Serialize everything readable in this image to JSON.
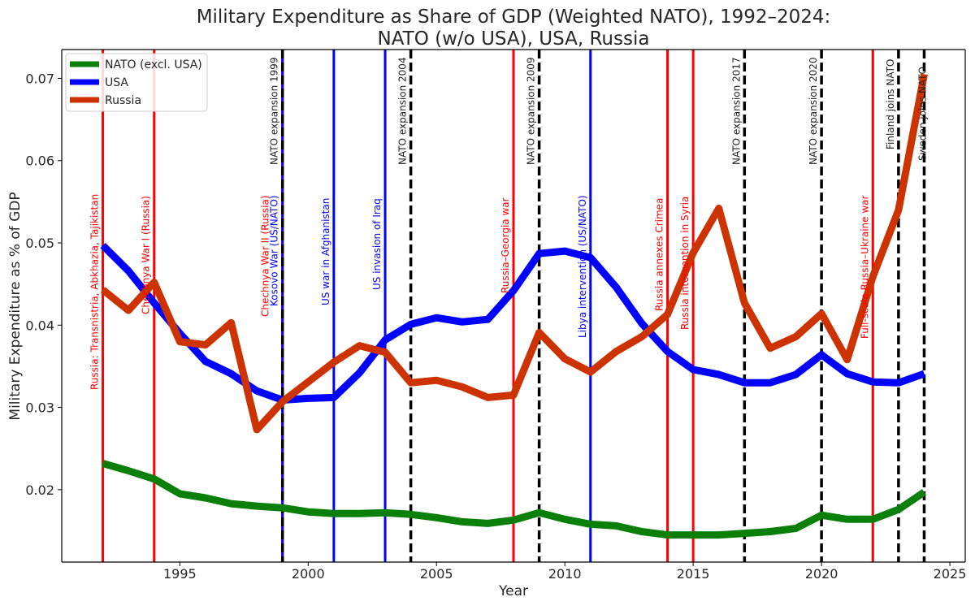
{
  "chart_data": {
    "type": "line",
    "title_line1": "Military Expenditure as Share of GDP (Weighted NATO), 1992–2024:",
    "title_line2": "NATO (w/o USA), USA, Russia",
    "xlabel": "Year",
    "ylabel": "Military Expenditure as % of GDP",
    "xlim": [
      1990.4,
      2025.6
    ],
    "ylim": [
      0.0112,
      0.0735
    ],
    "x_ticks": [
      1995,
      2000,
      2005,
      2010,
      2015,
      2020,
      2025
    ],
    "y_ticks": [
      0.02,
      0.03,
      0.04,
      0.05,
      0.06,
      0.07
    ],
    "y_tick_labels": [
      "0.02",
      "0.03",
      "0.04",
      "0.05",
      "0.06",
      "0.07"
    ],
    "legend_position": "top-left",
    "x": [
      1992,
      1993,
      1994,
      1995,
      1996,
      1997,
      1998,
      1999,
      2000,
      2001,
      2002,
      2003,
      2004,
      2005,
      2006,
      2007,
      2008,
      2009,
      2010,
      2011,
      2012,
      2013,
      2014,
      2015,
      2016,
      2017,
      2018,
      2019,
      2020,
      2021,
      2022,
      2023,
      2024
    ],
    "series": [
      {
        "name": "NATO (excl. USA)",
        "color": "#0a800a",
        "values": [
          0.0232,
          0.0223,
          0.0213,
          0.0195,
          0.019,
          0.0183,
          0.018,
          0.0178,
          0.0173,
          0.0171,
          0.0171,
          0.0172,
          0.017,
          0.0166,
          0.0161,
          0.0159,
          0.0163,
          0.0172,
          0.0164,
          0.0158,
          0.0156,
          0.0149,
          0.0145,
          0.0145,
          0.0145,
          0.0147,
          0.0149,
          0.0153,
          0.0169,
          0.0164,
          0.0164,
          0.0176,
          0.0197
        ]
      },
      {
        "name": "USA",
        "color": "#0000ff",
        "values": [
          0.0497,
          0.0466,
          0.0427,
          0.039,
          0.0356,
          0.0341,
          0.032,
          0.0309,
          0.0311,
          0.0312,
          0.0342,
          0.0382,
          0.0401,
          0.0409,
          0.0404,
          0.0407,
          0.0442,
          0.0487,
          0.049,
          0.0482,
          0.0446,
          0.0402,
          0.0368,
          0.0346,
          0.034,
          0.033,
          0.033,
          0.034,
          0.0364,
          0.0341,
          0.0331,
          0.033,
          0.0341
        ]
      },
      {
        "name": "Russia",
        "color": "#cc3300",
        "values": [
          0.0443,
          0.0418,
          0.0452,
          0.038,
          0.0376,
          0.0403,
          0.0273,
          0.0307,
          0.0331,
          0.0355,
          0.0375,
          0.0367,
          0.033,
          0.0333,
          0.0325,
          0.0312,
          0.0315,
          0.0391,
          0.0359,
          0.0343,
          0.0368,
          0.0386,
          0.0413,
          0.0488,
          0.0542,
          0.0427,
          0.0372,
          0.0386,
          0.0414,
          0.0358,
          0.0459,
          0.054,
          0.0705
        ]
      }
    ],
    "events": [
      {
        "year": 1992,
        "label": "Russia: Transnistria, Abkhazia, Tajikistan",
        "color": "#ff0000",
        "style": "solid"
      },
      {
        "year": 1994,
        "label": "Chechnya War I (Russia)",
        "color": "#ff0000",
        "style": "solid"
      },
      {
        "year": 1999,
        "label": "Chechnya War II (Russia)",
        "color": "#ff0000",
        "style": "solid"
      },
      {
        "year": 1999,
        "label": "Kosovo War (US/NATO)",
        "color": "#0000ff",
        "style": "solid"
      },
      {
        "year": 1999,
        "label": "NATO expansion 1999",
        "color": "#000000",
        "style": "dashed"
      },
      {
        "year": 2001,
        "label": "US war in Afghanistan",
        "color": "#0000ff",
        "style": "solid"
      },
      {
        "year": 2003,
        "label": "US invasion of Iraq",
        "color": "#0000ff",
        "style": "solid"
      },
      {
        "year": 2004,
        "label": "NATO expansion 2004",
        "color": "#000000",
        "style": "dashed"
      },
      {
        "year": 2008,
        "label": "Russia–Georgia war",
        "color": "#ff0000",
        "style": "solid"
      },
      {
        "year": 2009,
        "label": "NATO expansion 2009",
        "color": "#000000",
        "style": "dashed"
      },
      {
        "year": 2011,
        "label": "Libya intervention (US/NATO)",
        "color": "#0000ff",
        "style": "solid"
      },
      {
        "year": 2014,
        "label": "Russia annexes Crimea",
        "color": "#ff0000",
        "style": "solid"
      },
      {
        "year": 2015,
        "label": "Russia intervention in Syria",
        "color": "#ff0000",
        "style": "solid"
      },
      {
        "year": 2017,
        "label": "NATO expansion 2017",
        "color": "#000000",
        "style": "dashed"
      },
      {
        "year": 2020,
        "label": "NATO expansion 2020",
        "color": "#000000",
        "style": "dashed"
      },
      {
        "year": 2022,
        "label": "Full-scale Russia–Ukraine war",
        "color": "#ff0000",
        "style": "solid"
      },
      {
        "year": 2023,
        "label": "Finland joins NATO",
        "color": "#000000",
        "style": "dashed"
      },
      {
        "year": 2024,
        "label": "Sweden joins NATO",
        "color": "#000000",
        "style": "dashed"
      }
    ]
  }
}
